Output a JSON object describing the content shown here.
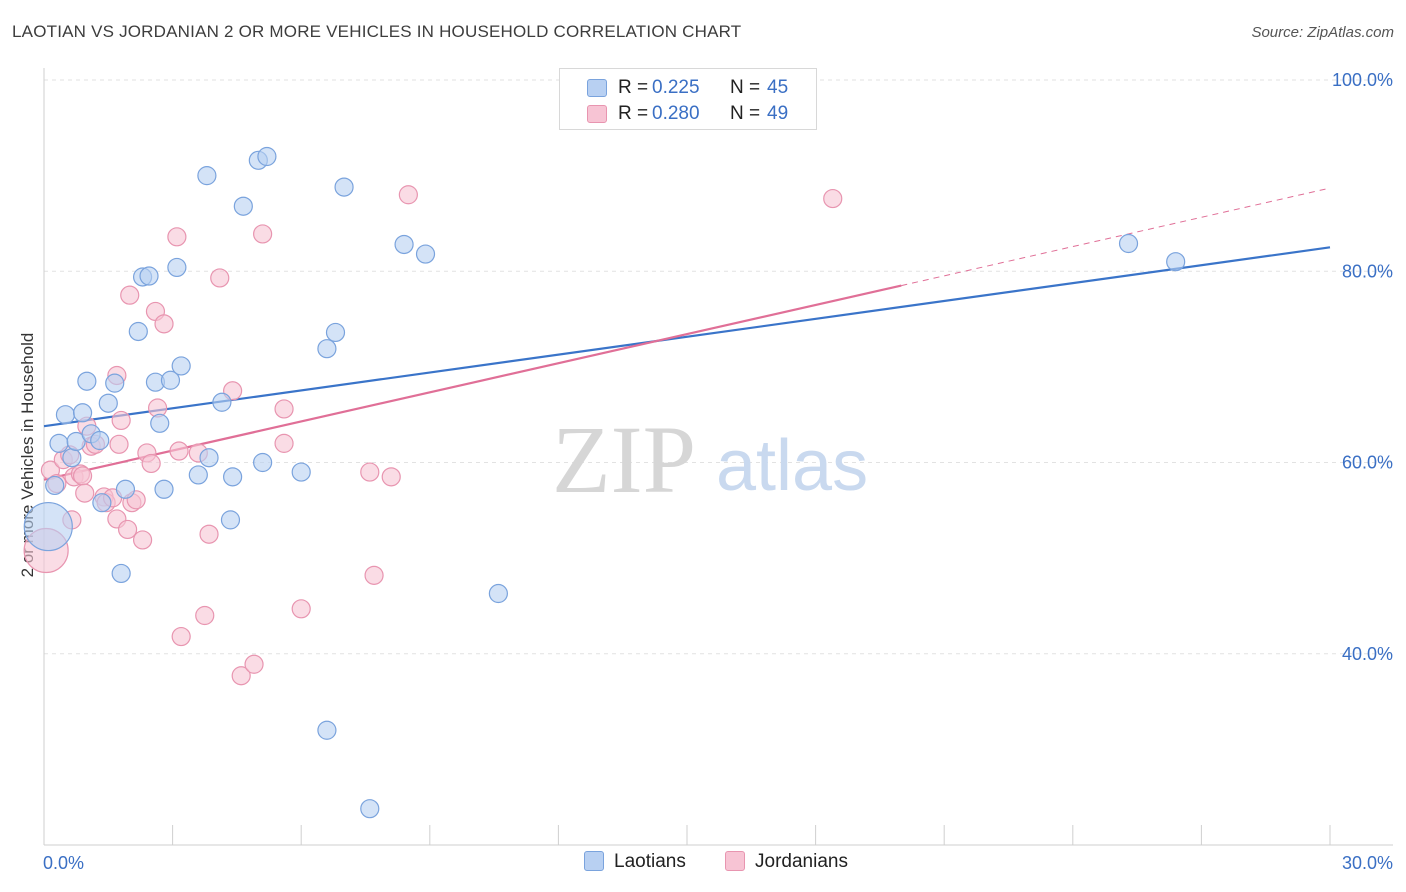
{
  "title": "LAOTIAN VS JORDANIAN 2 OR MORE VEHICLES IN HOUSEHOLD CORRELATION CHART",
  "source": "Source: ZipAtlas.com",
  "watermark": {
    "zip": "ZIP",
    "atlas": "atlas"
  },
  "legend": {
    "r_label": "R =",
    "n_label": "N =",
    "series": [
      {
        "name": "Laotians",
        "r": "0.225",
        "n": "45"
      },
      {
        "name": "Jordanians",
        "r": "0.280",
        "n": "49"
      }
    ]
  },
  "colors": {
    "laotian_fill": "#b8d0f2",
    "laotian_stroke": "#7aa3dd",
    "laotian_line": "#3a74c9",
    "jordanian_fill": "#f7c4d4",
    "jordanian_stroke": "#e895b0",
    "jordanian_line": "#e06f97",
    "axis_label": "#3a6fc4",
    "grid": "#e2e2e2"
  },
  "chart_data": {
    "type": "scatter",
    "title": "LAOTIAN VS JORDANIAN 2 OR MORE VEHICLES IN HOUSEHOLD CORRELATION CHART",
    "xlabel": "",
    "ylabel": "2 or more Vehicles in Household",
    "xlim": [
      0,
      30
    ],
    "ylim": [
      20,
      100
    ],
    "x_tick_labels": [
      "0.0%",
      "30.0%"
    ],
    "y_ticks": [
      {
        "value": 40,
        "label": "40.0%"
      },
      {
        "value": 60,
        "label": "60.0%"
      },
      {
        "value": 80,
        "label": "80.0%"
      },
      {
        "value": 100,
        "label": "100.0%"
      }
    ],
    "grid": true,
    "legend_position": "top-center",
    "series": [
      {
        "name": "Laotians",
        "r": 0.225,
        "n": 45,
        "trend": {
          "x0": 0,
          "y0": 63.8,
          "x1": 30,
          "y1": 82.5
        },
        "points": [
          [
            0.1,
            53.3,
            24
          ],
          [
            0.25,
            57.6,
            9
          ],
          [
            0.35,
            62.0,
            9
          ],
          [
            0.5,
            65.0,
            9
          ],
          [
            0.65,
            60.5,
            9
          ],
          [
            0.75,
            62.2,
            9
          ],
          [
            0.9,
            65.2,
            9
          ],
          [
            1.0,
            68.5,
            9
          ],
          [
            1.1,
            63.0,
            9
          ],
          [
            1.3,
            62.3,
            9
          ],
          [
            1.35,
            55.8,
            9
          ],
          [
            1.5,
            66.2,
            9
          ],
          [
            1.65,
            68.3,
            9
          ],
          [
            1.8,
            48.4,
            9
          ],
          [
            1.9,
            57.2,
            9
          ],
          [
            2.2,
            73.7,
            9
          ],
          [
            2.3,
            79.4,
            9
          ],
          [
            2.45,
            79.5,
            9
          ],
          [
            2.6,
            68.4,
            9
          ],
          [
            2.7,
            64.1,
            9
          ],
          [
            2.8,
            57.2,
            9
          ],
          [
            2.95,
            68.6,
            9
          ],
          [
            3.1,
            80.4,
            9
          ],
          [
            3.2,
            70.1,
            9
          ],
          [
            3.6,
            58.7,
            9
          ],
          [
            3.8,
            90.0,
            9
          ],
          [
            3.85,
            60.5,
            9
          ],
          [
            4.15,
            66.3,
            9
          ],
          [
            4.35,
            54.0,
            9
          ],
          [
            4.4,
            58.5,
            9
          ],
          [
            4.65,
            86.8,
            9
          ],
          [
            5.0,
            91.6,
            9
          ],
          [
            5.2,
            92.0,
            9
          ],
          [
            5.1,
            60.0,
            9
          ],
          [
            6.0,
            59.0,
            9
          ],
          [
            6.6,
            71.9,
            9
          ],
          [
            6.8,
            73.6,
            9
          ],
          [
            7.0,
            88.8,
            9
          ],
          [
            6.6,
            32.0,
            9
          ],
          [
            7.6,
            23.8,
            9
          ],
          [
            8.4,
            82.8,
            9
          ],
          [
            8.9,
            81.8,
            9
          ],
          [
            10.6,
            46.3,
            9
          ],
          [
            25.3,
            82.9,
            9
          ],
          [
            26.4,
            81.0,
            9
          ]
        ]
      },
      {
        "name": "Jordanians",
        "r": 0.28,
        "n": 49,
        "trend": {
          "x0": 0,
          "y0": 58.2,
          "x1": 20.0,
          "y1": 78.5
        },
        "trend_extension": {
          "x0": 20.0,
          "y0": 78.5,
          "x1": 30,
          "y1": 88.7
        },
        "points": [
          [
            0.05,
            50.8,
            22
          ],
          [
            0.15,
            59.2,
            9
          ],
          [
            0.3,
            57.8,
            9
          ],
          [
            0.45,
            60.3,
            9
          ],
          [
            0.6,
            60.8,
            9
          ],
          [
            0.7,
            58.5,
            9
          ],
          [
            0.65,
            54.0,
            9
          ],
          [
            0.85,
            58.8,
            9
          ],
          [
            0.9,
            58.6,
            9
          ],
          [
            0.95,
            56.8,
            9
          ],
          [
            1.0,
            63.8,
            9
          ],
          [
            1.1,
            61.7,
            9
          ],
          [
            1.2,
            61.9,
            9
          ],
          [
            1.4,
            56.4,
            9
          ],
          [
            1.45,
            55.8,
            9
          ],
          [
            1.6,
            56.3,
            9
          ],
          [
            1.7,
            69.1,
            9
          ],
          [
            1.8,
            64.4,
            9
          ],
          [
            1.7,
            54.1,
            9
          ],
          [
            1.75,
            61.9,
            9
          ],
          [
            1.95,
            53.0,
            9
          ],
          [
            2.0,
            77.5,
            9
          ],
          [
            2.05,
            55.8,
            9
          ],
          [
            2.15,
            56.1,
            9
          ],
          [
            2.3,
            51.9,
            9
          ],
          [
            2.4,
            61.0,
            9
          ],
          [
            2.5,
            59.9,
            9
          ],
          [
            2.6,
            75.8,
            9
          ],
          [
            2.65,
            65.7,
            9
          ],
          [
            2.8,
            74.5,
            9
          ],
          [
            3.1,
            83.6,
            9
          ],
          [
            3.15,
            61.2,
            9
          ],
          [
            3.2,
            41.8,
            9
          ],
          [
            3.6,
            61.0,
            9
          ],
          [
            3.75,
            44.0,
            9
          ],
          [
            3.85,
            52.5,
            9
          ],
          [
            4.1,
            79.3,
            9
          ],
          [
            4.4,
            67.5,
            9
          ],
          [
            4.6,
            37.7,
            9
          ],
          [
            4.9,
            38.9,
            9
          ],
          [
            5.1,
            83.9,
            9
          ],
          [
            5.6,
            65.6,
            9
          ],
          [
            5.6,
            62.0,
            9
          ],
          [
            6.0,
            44.7,
            9
          ],
          [
            7.6,
            59.0,
            9
          ],
          [
            7.7,
            48.2,
            9
          ],
          [
            8.1,
            58.5,
            9
          ],
          [
            8.5,
            88.0,
            9
          ],
          [
            18.4,
            87.6,
            9
          ]
        ]
      }
    ]
  }
}
